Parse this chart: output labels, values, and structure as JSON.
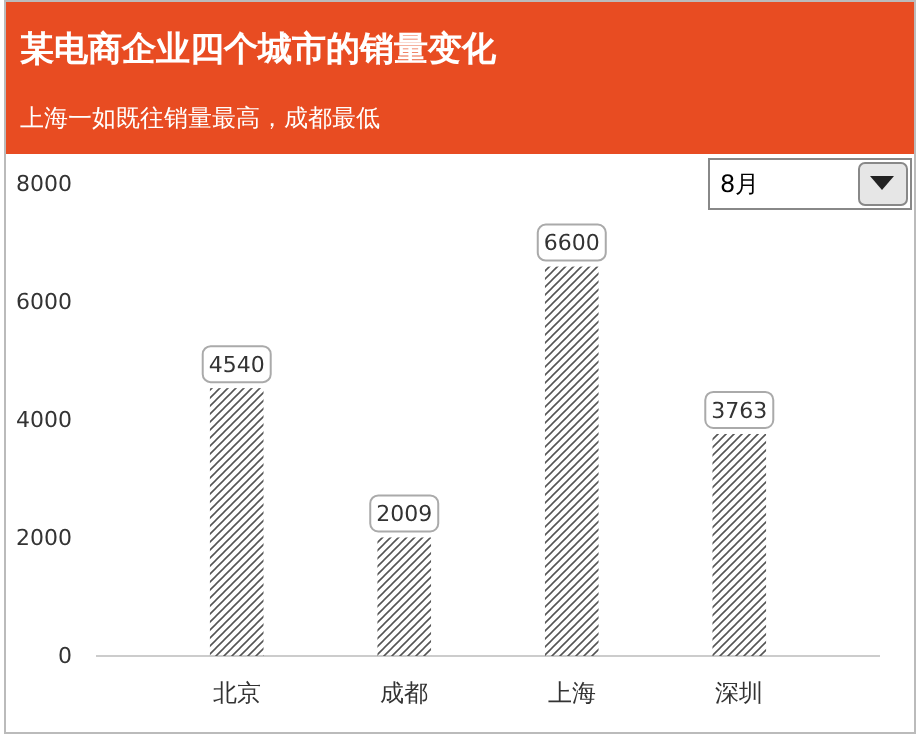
{
  "chart_data": {
    "type": "bar",
    "title": "某电商企业四个城市的销量变化",
    "subtitle": "上海一如既往销量最高，成都最低",
    "categories": [
      "北京",
      "成都",
      "上海",
      "深圳"
    ],
    "values": [
      4540,
      2009,
      6600,
      3763
    ],
    "color": "#555555",
    "ylim": [
      0,
      8000
    ],
    "yticks": [
      0,
      2000,
      4000,
      6000,
      8000
    ],
    "grid": false,
    "data_labels": true,
    "annotations": [
      "8月"
    ]
  }
}
